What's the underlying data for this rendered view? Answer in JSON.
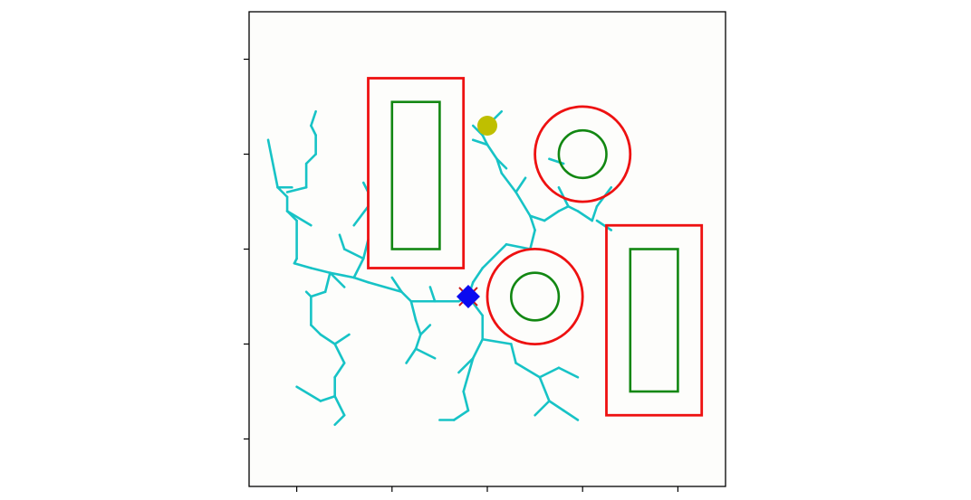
{
  "chart_data": {
    "type": "path-planning-diagram",
    "xlim": [
      0,
      10
    ],
    "ylim": [
      0,
      10
    ],
    "ticks": {
      "x": [
        1,
        3,
        5,
        7,
        9
      ],
      "y": [
        1,
        3,
        5,
        7,
        9
      ],
      "tick_labels_visible": false
    },
    "grid": false,
    "colors": {
      "plot_background": "#fdfdfb",
      "axes": "#000000",
      "tree": "#17c3c6",
      "obstacle_inflated": "#ee1111",
      "obstacle_core": "#128712",
      "start_marker": "#0a0af0",
      "goal_marker": "#bfbf00",
      "start_cross": "#cc1a1a"
    },
    "obstacles": [
      {
        "shape": "rect",
        "outer": {
          "x0": 2.5,
          "y0": 4.6,
          "x1": 4.5,
          "y1": 8.6
        },
        "inner": {
          "x0": 3.0,
          "y0": 5.0,
          "x1": 4.0,
          "y1": 8.1
        }
      },
      {
        "shape": "circle",
        "cx": 7.0,
        "cy": 7.0,
        "r_outer": 1.0,
        "r_inner": 0.5
      },
      {
        "shape": "circle",
        "cx": 6.0,
        "cy": 4.0,
        "r_outer": 1.0,
        "r_inner": 0.5
      },
      {
        "shape": "rect",
        "outer": {
          "x0": 7.5,
          "y0": 1.5,
          "x1": 9.5,
          "y1": 5.5
        },
        "inner": {
          "x0": 8.0,
          "y0": 2.0,
          "x1": 9.0,
          "y1": 5.0
        }
      }
    ],
    "start": {
      "x": 4.6,
      "y": 4.0,
      "marker": "diamond"
    },
    "goal": {
      "x": 5.0,
      "y": 7.6,
      "marker": "circle"
    },
    "tree_edges": [
      [
        [
          0.4,
          7.3
        ],
        [
          0.6,
          6.3
        ]
      ],
      [
        [
          0.6,
          6.3
        ],
        [
          0.9,
          6.3
        ]
      ],
      [
        [
          0.6,
          6.3
        ],
        [
          0.8,
          6.1
        ]
      ],
      [
        [
          0.8,
          6.1
        ],
        [
          0.8,
          5.8
        ]
      ],
      [
        [
          0.8,
          5.8
        ],
        [
          1.0,
          5.6
        ]
      ],
      [
        [
          0.8,
          5.8
        ],
        [
          1.3,
          5.5
        ]
      ],
      [
        [
          0.8,
          6.2
        ],
        [
          1.2,
          6.3
        ]
      ],
      [
        [
          1.2,
          6.3
        ],
        [
          1.2,
          6.8
        ]
      ],
      [
        [
          1.2,
          6.8
        ],
        [
          1.4,
          7.0
        ]
      ],
      [
        [
          1.4,
          7.0
        ],
        [
          1.4,
          7.4
        ]
      ],
      [
        [
          1.4,
          7.4
        ],
        [
          1.3,
          7.6
        ]
      ],
      [
        [
          1.3,
          7.6
        ],
        [
          1.4,
          7.9
        ]
      ],
      [
        [
          1.0,
          5.6
        ],
        [
          1.0,
          4.8
        ]
      ],
      [
        [
          1.0,
          4.8
        ],
        [
          0.95,
          4.7
        ]
      ],
      [
        [
          0.95,
          4.7
        ],
        [
          1.3,
          4.6
        ]
      ],
      [
        [
          1.3,
          4.6
        ],
        [
          1.7,
          4.5
        ]
      ],
      [
        [
          1.7,
          4.5
        ],
        [
          2.0,
          4.2
        ]
      ],
      [
        [
          1.7,
          4.5
        ],
        [
          1.6,
          4.1
        ]
      ],
      [
        [
          1.6,
          4.1
        ],
        [
          1.3,
          4.0
        ]
      ],
      [
        [
          1.3,
          4.0
        ],
        [
          1.2,
          4.1
        ]
      ],
      [
        [
          1.3,
          4.0
        ],
        [
          1.3,
          3.4
        ]
      ],
      [
        [
          1.3,
          3.4
        ],
        [
          1.5,
          3.2
        ]
      ],
      [
        [
          1.5,
          3.2
        ],
        [
          1.8,
          3.0
        ]
      ],
      [
        [
          1.8,
          3.0
        ],
        [
          2.1,
          3.2
        ]
      ],
      [
        [
          1.8,
          3.0
        ],
        [
          2.0,
          2.6
        ]
      ],
      [
        [
          2.0,
          2.6
        ],
        [
          1.8,
          2.3
        ]
      ],
      [
        [
          1.8,
          2.3
        ],
        [
          1.8,
          1.9
        ]
      ],
      [
        [
          1.8,
          1.9
        ],
        [
          1.5,
          1.8
        ]
      ],
      [
        [
          1.5,
          1.8
        ],
        [
          1.0,
          2.1
        ]
      ],
      [
        [
          1.8,
          1.9
        ],
        [
          2.0,
          1.5
        ]
      ],
      [
        [
          2.0,
          1.5
        ],
        [
          1.8,
          1.3
        ]
      ],
      [
        [
          1.7,
          4.5
        ],
        [
          2.2,
          4.4
        ]
      ],
      [
        [
          2.2,
          4.4
        ],
        [
          2.4,
          4.8
        ]
      ],
      [
        [
          2.4,
          4.8
        ],
        [
          2.5,
          5.2
        ]
      ],
      [
        [
          2.4,
          4.8
        ],
        [
          2.0,
          5.0
        ]
      ],
      [
        [
          2.0,
          5.0
        ],
        [
          1.9,
          5.3
        ]
      ],
      [
        [
          2.2,
          5.5
        ],
        [
          2.5,
          5.9
        ]
      ],
      [
        [
          2.5,
          5.9
        ],
        [
          2.5,
          6.2
        ]
      ],
      [
        [
          2.4,
          6.4
        ],
        [
          2.5,
          6.2
        ]
      ],
      [
        [
          2.2,
          4.4
        ],
        [
          2.5,
          4.3
        ]
      ],
      [
        [
          2.5,
          4.3
        ],
        [
          3.2,
          4.1
        ]
      ],
      [
        [
          3.2,
          4.1
        ],
        [
          3.0,
          4.4
        ]
      ],
      [
        [
          3.2,
          4.1
        ],
        [
          3.4,
          3.9
        ]
      ],
      [
        [
          3.4,
          3.9
        ],
        [
          3.5,
          3.5
        ]
      ],
      [
        [
          3.5,
          3.5
        ],
        [
          3.6,
          3.2
        ]
      ],
      [
        [
          3.6,
          3.2
        ],
        [
          3.5,
          2.9
        ]
      ],
      [
        [
          3.5,
          2.9
        ],
        [
          3.3,
          2.6
        ]
      ],
      [
        [
          3.5,
          2.9
        ],
        [
          3.9,
          2.7
        ]
      ],
      [
        [
          3.4,
          3.9
        ],
        [
          3.9,
          3.9
        ]
      ],
      [
        [
          3.9,
          3.9
        ],
        [
          3.8,
          4.2
        ]
      ],
      [
        [
          3.9,
          3.9
        ],
        [
          4.4,
          3.9
        ]
      ],
      [
        [
          4.4,
          3.9
        ],
        [
          4.6,
          4.0
        ]
      ],
      [
        [
          3.6,
          3.2
        ],
        [
          3.8,
          3.4
        ]
      ],
      [
        [
          4.6,
          4.0
        ],
        [
          4.7,
          4.3
        ]
      ],
      [
        [
          4.7,
          4.3
        ],
        [
          4.9,
          4.6
        ]
      ],
      [
        [
          4.9,
          4.6
        ],
        [
          5.4,
          5.1
        ]
      ],
      [
        [
          5.4,
          5.1
        ],
        [
          5.9,
          5.0
        ]
      ],
      [
        [
          5.9,
          5.0
        ],
        [
          6.0,
          5.4
        ]
      ],
      [
        [
          6.0,
          5.4
        ],
        [
          5.9,
          5.7
        ]
      ],
      [
        [
          5.9,
          5.7
        ],
        [
          5.6,
          6.2
        ]
      ],
      [
        [
          5.6,
          6.2
        ],
        [
          5.3,
          6.6
        ]
      ],
      [
        [
          5.3,
          6.6
        ],
        [
          5.2,
          6.9
        ]
      ],
      [
        [
          5.2,
          6.9
        ],
        [
          5.0,
          7.2
        ]
      ],
      [
        [
          5.0,
          7.2
        ],
        [
          4.9,
          7.4
        ]
      ],
      [
        [
          4.9,
          7.4
        ],
        [
          4.7,
          7.6
        ]
      ],
      [
        [
          4.9,
          7.4
        ],
        [
          5.0,
          7.6
        ]
      ],
      [
        [
          5.0,
          7.6
        ],
        [
          5.3,
          7.9
        ]
      ],
      [
        [
          5.0,
          7.2
        ],
        [
          4.7,
          7.3
        ]
      ],
      [
        [
          5.2,
          6.9
        ],
        [
          5.4,
          6.7
        ]
      ],
      [
        [
          5.6,
          6.2
        ],
        [
          5.8,
          6.5
        ]
      ],
      [
        [
          5.9,
          5.7
        ],
        [
          6.2,
          5.6
        ]
      ],
      [
        [
          6.2,
          5.6
        ],
        [
          6.5,
          5.8
        ]
      ],
      [
        [
          6.5,
          5.8
        ],
        [
          6.7,
          5.9
        ]
      ],
      [
        [
          6.7,
          5.9
        ],
        [
          6.9,
          5.8
        ]
      ],
      [
        [
          6.9,
          5.8
        ],
        [
          7.2,
          5.6
        ]
      ],
      [
        [
          7.2,
          5.6
        ],
        [
          7.3,
          5.9
        ]
      ],
      [
        [
          7.3,
          5.9
        ],
        [
          7.6,
          6.3
        ]
      ],
      [
        [
          7.3,
          5.6
        ],
        [
          7.6,
          5.4
        ]
      ],
      [
        [
          6.7,
          5.9
        ],
        [
          6.5,
          6.3
        ]
      ],
      [
        [
          6.3,
          6.9
        ],
        [
          6.6,
          6.8
        ]
      ],
      [
        [
          4.6,
          4.0
        ],
        [
          4.9,
          3.6
        ]
      ],
      [
        [
          4.9,
          3.6
        ],
        [
          4.9,
          3.1
        ]
      ],
      [
        [
          4.9,
          3.1
        ],
        [
          4.7,
          2.7
        ]
      ],
      [
        [
          4.7,
          2.7
        ],
        [
          4.4,
          2.4
        ]
      ],
      [
        [
          4.7,
          2.7
        ],
        [
          4.5,
          2.0
        ]
      ],
      [
        [
          4.5,
          2.0
        ],
        [
          4.6,
          1.6
        ]
      ],
      [
        [
          4.6,
          1.6
        ],
        [
          4.3,
          1.4
        ]
      ],
      [
        [
          4.3,
          1.4
        ],
        [
          4.0,
          1.4
        ]
      ],
      [
        [
          4.9,
          3.1
        ],
        [
          5.5,
          3.0
        ]
      ],
      [
        [
          5.5,
          3.0
        ],
        [
          5.6,
          2.6
        ]
      ],
      [
        [
          5.6,
          2.6
        ],
        [
          6.1,
          2.3
        ]
      ],
      [
        [
          6.1,
          2.3
        ],
        [
          6.5,
          2.5
        ]
      ],
      [
        [
          6.5,
          2.5
        ],
        [
          6.9,
          2.3
        ]
      ],
      [
        [
          6.1,
          2.3
        ],
        [
          6.3,
          1.8
        ]
      ],
      [
        [
          6.3,
          1.8
        ],
        [
          6.6,
          1.6
        ]
      ],
      [
        [
          6.6,
          1.6
        ],
        [
          6.9,
          1.4
        ]
      ],
      [
        [
          6.3,
          1.8
        ],
        [
          6.0,
          1.5
        ]
      ]
    ]
  }
}
